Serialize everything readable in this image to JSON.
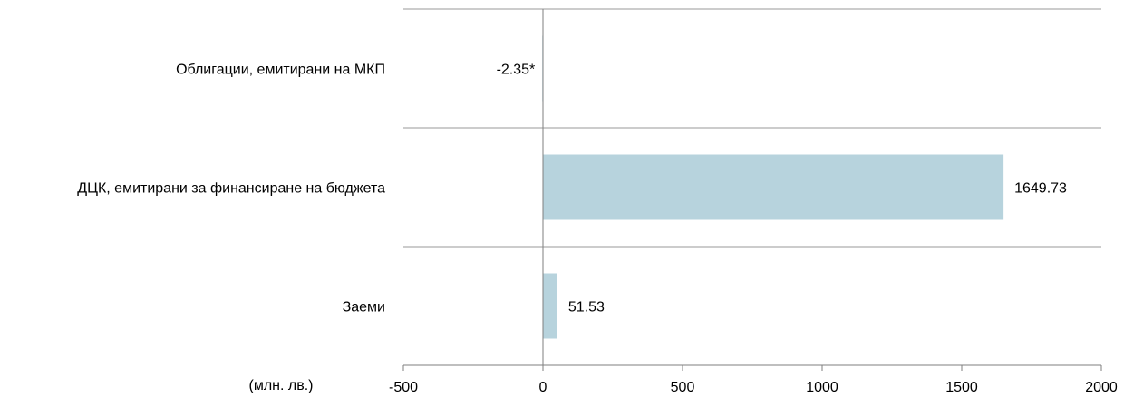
{
  "chart_data": {
    "type": "bar",
    "orientation": "horizontal",
    "categories": [
      "Облигации, емитирани на МКП",
      "ДЦК, емитирани за финансиране на бюджета",
      "Заеми"
    ],
    "values": [
      -2.35,
      1649.73,
      51.53
    ],
    "data_labels": [
      "-2.35*",
      "1649.73",
      "51.53"
    ],
    "x_ticks": [
      -500,
      0,
      500,
      1000,
      1500,
      2000
    ],
    "x_tick_labels": [
      "-500",
      "0",
      "500",
      "1000",
      "1500",
      "2000"
    ],
    "xlim": [
      -500,
      2000
    ],
    "unit_label": "(млн. лв.)",
    "bar_color": "#b7d3dd",
    "grid": "horizontal separators between categories",
    "legend": "none"
  }
}
